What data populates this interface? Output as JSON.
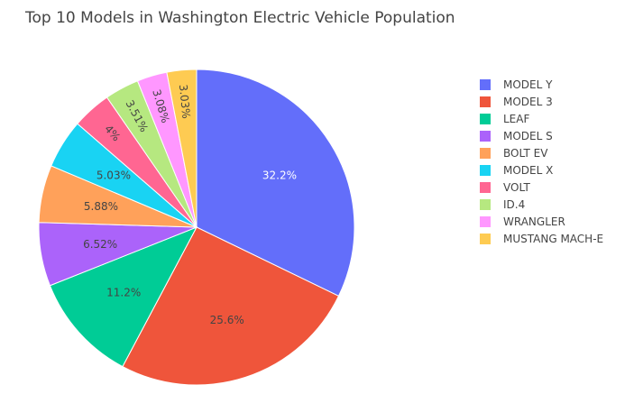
{
  "chart_data": {
    "type": "pie",
    "title": "Top 10 Models in Washington Electric Vehicle Population",
    "labels": [
      "MODEL Y",
      "MODEL 3",
      "LEAF",
      "MODEL S",
      "BOLT EV",
      "MODEL X",
      "VOLT",
      "ID.4",
      "WRANGLER",
      "MUSTANG MACH-E"
    ],
    "values": [
      32.2,
      25.6,
      11.2,
      6.52,
      5.88,
      5.03,
      4,
      3.51,
      3.08,
      3.03
    ],
    "value_labels": [
      "32.2%",
      "25.6%",
      "11.2%",
      "6.52%",
      "5.88%",
      "5.03%",
      "4%",
      "3.51%",
      "3.08%",
      "3.03%"
    ],
    "colors": [
      "#636efa",
      "#EF553B",
      "#00cc96",
      "#ab63fa",
      "#FFA15A",
      "#19d3f3",
      "#FF6692",
      "#B6E880",
      "#FF97FF",
      "#FECB52"
    ],
    "label_colors": [
      "#ffffff",
      "#444444",
      "#444444",
      "#444444",
      "#444444",
      "#444444",
      "#444444",
      "#444444",
      "#444444",
      "#444444"
    ],
    "direction": "clockwise",
    "start": "top",
    "legend_position": "right"
  }
}
